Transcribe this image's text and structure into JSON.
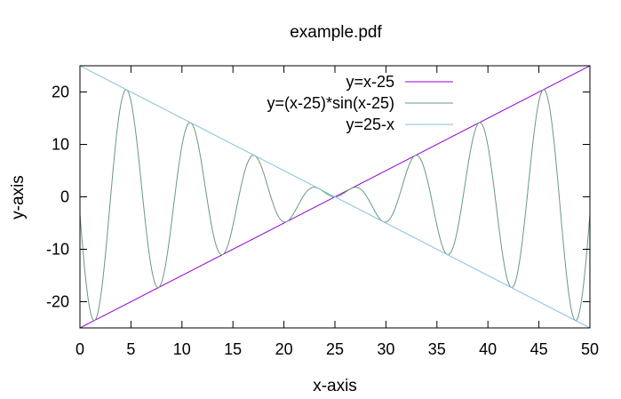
{
  "chart_data": {
    "type": "line",
    "title": "example.pdf",
    "xlabel": "x-axis",
    "ylabel": "y-axis",
    "xlim": [
      0,
      50
    ],
    "ylim": [
      -25,
      25
    ],
    "x_ticks": [
      0,
      5,
      10,
      15,
      20,
      25,
      30,
      35,
      40,
      45,
      50
    ],
    "y_ticks": [
      -20,
      -10,
      0,
      10,
      20
    ],
    "grid": false,
    "legend_position": "top-right",
    "x_sampling": {
      "start": 0,
      "end": 50,
      "step": 0.05
    },
    "series": [
      {
        "name": "y=x-25",
        "formula": "x-25",
        "color": "#9400d3"
      },
      {
        "name": "y=(x-25)*sin(x-25)",
        "formula": "(x-25)*sin(x-25)",
        "color": "#6a9a7e"
      },
      {
        "name": "y=25-x",
        "formula": "25-x",
        "color": "#87bfe0"
      }
    ]
  }
}
